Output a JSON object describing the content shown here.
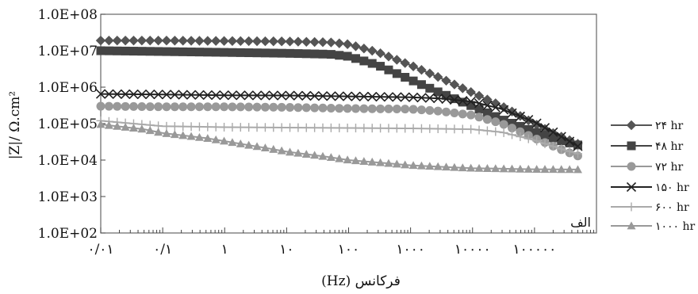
{
  "chart_data": {
    "type": "line",
    "xscale": "log",
    "yscale": "log",
    "xlim": [
      0.01,
      1000000
    ],
    "ylim": [
      100,
      100000000
    ],
    "xlabel": "فرکانس (Hz)",
    "ylabel": "|Z|/ Ω.cm²",
    "corner_label": "الف",
    "grid": false,
    "legend_position": "right",
    "x_ticks": [
      {
        "value": 0.01,
        "label": "۰/۰۱"
      },
      {
        "value": 0.1,
        "label": "۰/۱"
      },
      {
        "value": 1,
        "label": "۱"
      },
      {
        "value": 10,
        "label": "۱۰"
      },
      {
        "value": 100,
        "label": "۱۰۰"
      },
      {
        "value": 1000,
        "label": "۱۰۰۰"
      },
      {
        "value": 10000,
        "label": "۱۰۰۰۰"
      },
      {
        "value": 100000,
        "label": "۱۰۰۰۰۰"
      }
    ],
    "y_ticks": [
      {
        "value": 100,
        "label": "1.0E+02"
      },
      {
        "value": 1000,
        "label": "1.0E+03"
      },
      {
        "value": 10000,
        "label": "1.0E+04"
      },
      {
        "value": 100000,
        "label": "1.0E+05"
      },
      {
        "value": 1000000,
        "label": "1.0E+06"
      },
      {
        "value": 10000000,
        "label": "1.0E+07"
      },
      {
        "value": 100000000,
        "label": "1.0E+08"
      }
    ],
    "series": [
      {
        "name": "۲۴ hr",
        "color": "#555555",
        "marker": "diamond",
        "points": [
          [
            0.01,
            19000000.0
          ],
          [
            0.1,
            19000000.0
          ],
          [
            1,
            18500000.0
          ],
          [
            10,
            18000000.0
          ],
          [
            50,
            17000000.0
          ],
          [
            100,
            15000000.0
          ],
          [
            300,
            9000000.0
          ],
          [
            1000,
            4000000.0
          ],
          [
            3000,
            1800000.0
          ],
          [
            10000,
            700000.0
          ],
          [
            30000,
            300000.0
          ],
          [
            100000,
            100000.0
          ],
          [
            200000,
            55000.0
          ],
          [
            500000,
            28000.0
          ]
        ]
      },
      {
        "name": "۴۸ hr",
        "color": "#444444",
        "marker": "square",
        "points": [
          [
            0.01,
            10000000.0
          ],
          [
            0.1,
            9500000.0
          ],
          [
            1,
            9000000.0
          ],
          [
            10,
            8500000.0
          ],
          [
            50,
            8000000.0
          ],
          [
            100,
            7000000.0
          ],
          [
            300,
            4000000.0
          ],
          [
            1000,
            1600000.0
          ],
          [
            3000,
            700000.0
          ],
          [
            10000,
            300000.0
          ],
          [
            30000,
            130000.0
          ],
          [
            100000,
            60000.0
          ],
          [
            300000,
            32000.0
          ],
          [
            500000,
            26000.0
          ]
        ]
      },
      {
        "name": "۷۲ hr",
        "color": "#999999",
        "marker": "circle",
        "points": [
          [
            0.01,
            300000.0
          ],
          [
            0.1,
            290000.0
          ],
          [
            1,
            290000.0
          ],
          [
            10,
            280000.0
          ],
          [
            100,
            260000.0
          ],
          [
            1000,
            250000.0
          ],
          [
            3000,
            220000.0
          ],
          [
            10000,
            170000.0
          ],
          [
            30000,
            100000.0
          ],
          [
            100000,
            40000.0
          ],
          [
            300000,
            18000.0
          ],
          [
            500000,
            13000.0
          ]
        ]
      },
      {
        "name": "۱۵۰ hr",
        "color": "#222222",
        "marker": "x",
        "points": [
          [
            0.01,
            650000.0
          ],
          [
            0.1,
            630000.0
          ],
          [
            1,
            600000.0
          ],
          [
            10,
            590000.0
          ],
          [
            100,
            560000.0
          ],
          [
            1000,
            530000.0
          ],
          [
            3000,
            490000.0
          ],
          [
            10000,
            400000.0
          ],
          [
            30000,
            250000.0
          ],
          [
            100000,
            110000.0
          ],
          [
            300000,
            40000.0
          ],
          [
            500000,
            24000.0
          ]
        ]
      },
      {
        "name": "۶۰۰ hr",
        "color": "#aaaaaa",
        "marker": "plus",
        "points": [
          [
            0.01,
            120000.0
          ],
          [
            0.1,
            85000.0
          ],
          [
            1,
            80000.0
          ],
          [
            10,
            78000.0
          ],
          [
            100,
            76000.0
          ],
          [
            1000,
            74000.0
          ],
          [
            10000,
            70000.0
          ],
          [
            30000,
            58000.0
          ],
          [
            100000,
            35000.0
          ],
          [
            300000,
            19000.0
          ],
          [
            500000,
            15000.0
          ]
        ]
      },
      {
        "name": "۱۰۰۰ hr",
        "color": "#999999",
        "marker": "triangle",
        "points": [
          [
            0.01,
            95000.0
          ],
          [
            0.05,
            70000.0
          ],
          [
            0.1,
            55000.0
          ],
          [
            0.5,
            40000.0
          ],
          [
            1,
            33000.0
          ],
          [
            5,
            21000.0
          ],
          [
            10,
            17000.0
          ],
          [
            50,
            12000.0
          ],
          [
            100,
            10000.0
          ],
          [
            500,
            8000.0
          ],
          [
            1000,
            7200.0
          ],
          [
            5000,
            6300.0
          ],
          [
            10000,
            6000.0
          ],
          [
            50000,
            5700.0
          ],
          [
            100000,
            5600.0
          ],
          [
            500000,
            5500.0
          ]
        ]
      }
    ]
  }
}
